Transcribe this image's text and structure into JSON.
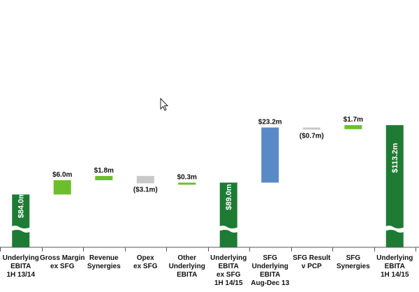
{
  "chart_data": {
    "type": "bar",
    "subtype": "waterfall",
    "axis_break": true,
    "gridlines": false,
    "legend": "none",
    "categories": [
      [
        "Underlying",
        "EBITA",
        "1H 13/14"
      ],
      [
        "Gross Margin",
        "ex SFG"
      ],
      [
        "Revenue",
        "Synergies"
      ],
      [
        "Opex",
        "ex SFG"
      ],
      [
        "Other",
        "Underlying",
        "EBITA"
      ],
      [
        "Underlying",
        "EBITA",
        "ex SFG",
        "1H 14/15"
      ],
      [
        "SFG",
        "Underlying",
        "EBITA",
        "Aug-Dec 13"
      ],
      [
        "SFG Result",
        "v PCP"
      ],
      [
        "SFG",
        "Synergies"
      ],
      [
        "Underlying",
        "EBITA",
        "1H 14/15"
      ]
    ],
    "values": [
      84.0,
      6.0,
      1.8,
      -3.1,
      0.3,
      89.0,
      23.2,
      -0.7,
      1.7,
      113.2
    ],
    "kinds": [
      "total",
      "delta",
      "delta",
      "delta",
      "delta",
      "total",
      "delta",
      "delta",
      "delta",
      "total"
    ],
    "labels": [
      "$84.0m",
      "$6.0m",
      "$1.8m",
      "($3.1m)",
      "$0.3m",
      "$89.0m",
      "$23.2m",
      "($0.7m)",
      "$1.7m",
      "$113.2m"
    ],
    "colors": [
      "#1e7b34",
      "#6cbf2b",
      "#6cbf2b",
      "#c8c8c8",
      "#6cbf2b",
      "#1e7b34",
      "#5a8ac6",
      "#c8c8c8",
      "#6cbf2b",
      "#1e7b34"
    ]
  }
}
